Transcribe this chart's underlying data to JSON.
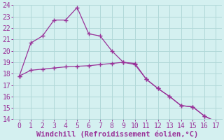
{
  "xlabel": "Windchill (Refroidissement éolien,°C)",
  "xlim": [
    -0.5,
    17.5
  ],
  "ylim": [
    14,
    24
  ],
  "yticks": [
    14,
    15,
    16,
    17,
    18,
    19,
    20,
    21,
    22,
    23,
    24
  ],
  "xticks": [
    0,
    1,
    2,
    3,
    4,
    5,
    6,
    7,
    8,
    9,
    10,
    11,
    12,
    13,
    14,
    15,
    16,
    17
  ],
  "line_color": "#993399",
  "bg_color": "#d4f0f0",
  "grid_color": "#b0d8d8",
  "line1_x": [
    0,
    1,
    2,
    3,
    4,
    5,
    6,
    7,
    8,
    9,
    10,
    11,
    12,
    13,
    14,
    15,
    16,
    17
  ],
  "line1_y": [
    17.8,
    20.7,
    21.3,
    22.7,
    22.7,
    23.8,
    21.5,
    21.3,
    20.0,
    19.0,
    18.8,
    17.5,
    16.7,
    16.0,
    15.2,
    15.1,
    14.3,
    13.8
  ],
  "line2_x": [
    0,
    1,
    2,
    3,
    4,
    5,
    6,
    7,
    8,
    9,
    10,
    11,
    12,
    13,
    14,
    15,
    16,
    17
  ],
  "line2_y": [
    17.8,
    18.3,
    18.4,
    18.5,
    18.6,
    18.65,
    18.7,
    18.8,
    18.9,
    19.0,
    18.9,
    17.5,
    16.7,
    16.0,
    15.2,
    15.1,
    14.3,
    13.8
  ],
  "tick_fontsize": 7,
  "xlabel_fontsize": 7.5
}
